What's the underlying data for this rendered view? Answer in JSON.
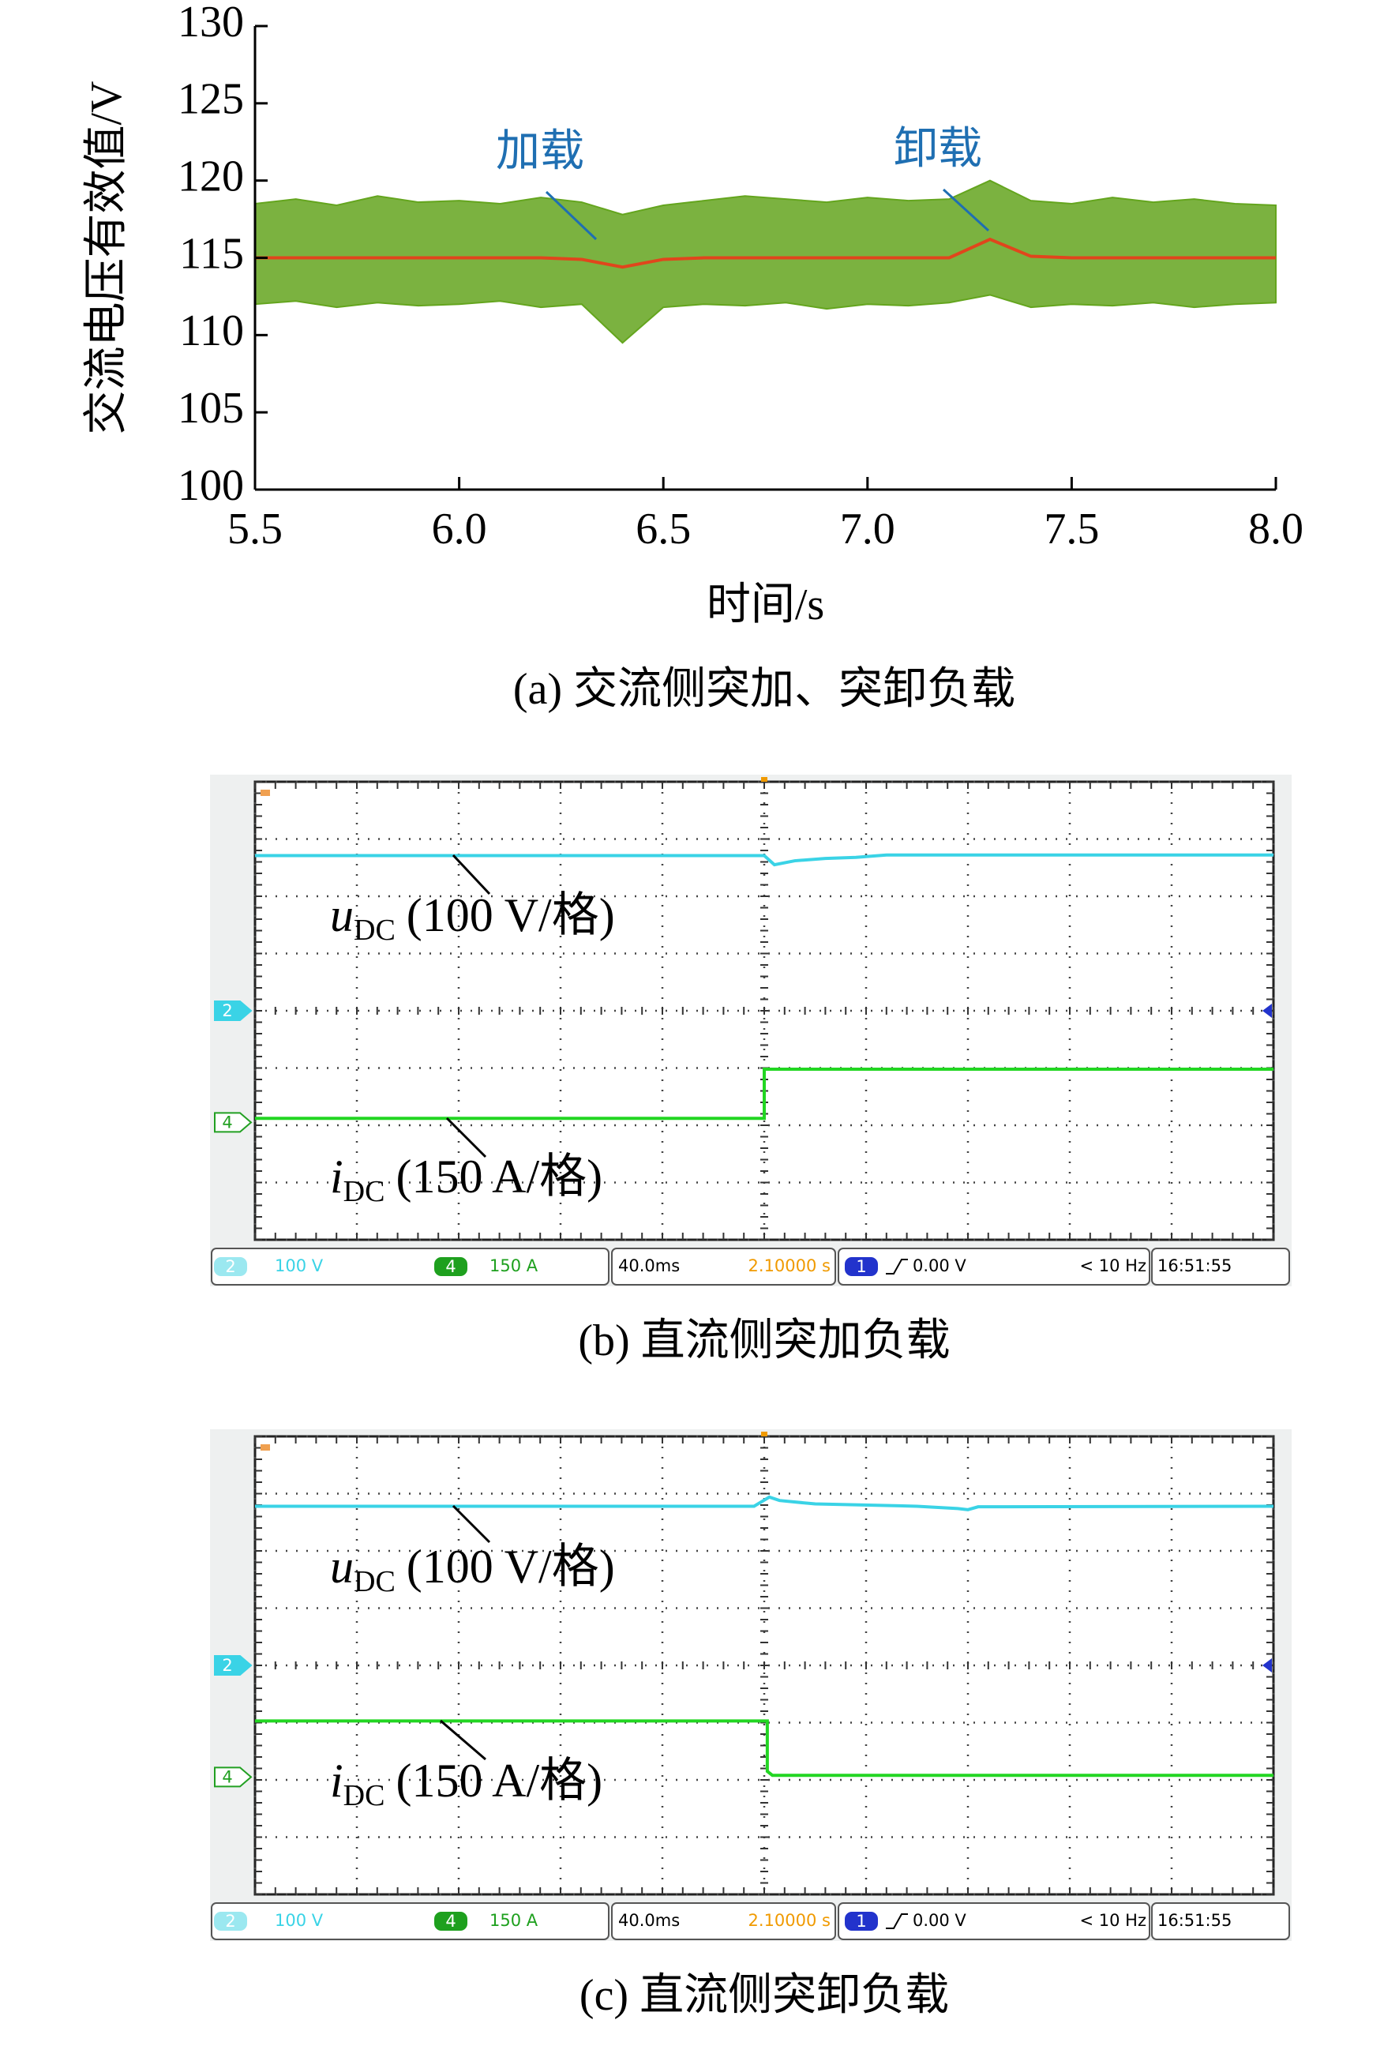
{
  "chart_data": [
    {
      "type": "line",
      "x_label": "时间/s",
      "y_label": "交流电压有效值/V",
      "caption": "(a) 交流侧突加、突卸负载",
      "annotations": [
        "加载",
        "卸载"
      ],
      "annotation_color": "#1f6fb2",
      "xlim": [
        5.5,
        8.0
      ],
      "ylim": [
        100,
        130
      ],
      "xticks": [
        5.5,
        {
          "value": 6,
          "label": "6.0"
        },
        6.5,
        {
          "value": 7,
          "label": "7.0"
        },
        7.5,
        {
          "value": 8,
          "label": "8.0"
        }
      ],
      "yticks": [
        100,
        105,
        110,
        115,
        120,
        125,
        130
      ],
      "x": [
        5.5,
        5.6,
        5.7,
        5.8,
        5.9,
        6.0,
        6.1,
        6.2,
        6.3,
        6.4,
        6.5,
        6.6,
        6.7,
        6.8,
        6.9,
        7.0,
        7.1,
        7.2,
        7.3,
        7.4,
        7.5,
        7.6,
        7.7,
        7.8,
        7.9,
        8.0
      ],
      "band": {
        "color": "#64a51e",
        "upper": [
          118.5,
          118.8,
          118.4,
          119,
          118.6,
          118.7,
          118.5,
          118.9,
          118.6,
          117.8,
          118.4,
          118.7,
          119,
          118.8,
          118.6,
          118.9,
          118.7,
          118.8,
          120,
          118.7,
          118.5,
          118.9,
          118.6,
          118.8,
          118.5,
          118.4
        ],
        "lower": [
          112,
          112.2,
          111.8,
          112.1,
          111.9,
          112,
          112.2,
          111.8,
          112,
          109.5,
          111.8,
          112,
          111.9,
          112.1,
          111.7,
          112,
          111.9,
          112.1,
          112.6,
          111.8,
          112,
          111.9,
          112.1,
          111.8,
          112,
          112.1
        ]
      },
      "series": [
        {
          "color": "#e0461c",
          "values": [
            115,
            115,
            115,
            115,
            115,
            115,
            115,
            115,
            114.9,
            114.4,
            114.9,
            115,
            115,
            115,
            115,
            115,
            115,
            115,
            116.2,
            115.1,
            115,
            115,
            115,
            115,
            115,
            115
          ]
        }
      ]
    },
    {
      "type": "oscilloscope",
      "caption": "(b) 直流侧突加负载",
      "xlim": [
        0,
        10
      ],
      "ylim": [
        -4,
        4
      ],
      "xticks": [
        0,
        1,
        2,
        3,
        4,
        5,
        6,
        7,
        8,
        9,
        10
      ],
      "yticks": [
        -4,
        -3,
        -2,
        -1,
        0,
        1,
        2,
        3,
        4
      ],
      "series": [
        {
          "color": "#3ad3e6",
          "x": [
            0,
            4.9,
            5.0,
            5.1,
            5.3,
            5.6,
            5.9,
            6.2,
            10
          ],
          "values": [
            2.71,
            2.71,
            2.71,
            2.55,
            2.62,
            2.66,
            2.68,
            2.72,
            2.72
          ]
        },
        {
          "color": "#22d622",
          "x": [
            0,
            5.0,
            5.0,
            5.04,
            10
          ],
          "values": [
            -1.88,
            -1.88,
            -1.02,
            -1.02,
            -1.02
          ]
        }
      ],
      "markers": [
        {
          "label": "2",
          "value": 0,
          "color": "#3ad3e6"
        },
        {
          "label": "4",
          "value": -1.95,
          "color": "#22a022"
        }
      ],
      "annotations": [
        {
          "symbol": "u",
          "subscript": "DC",
          "text": "(100 V/格)"
        },
        {
          "symbol": "i",
          "subscript": "DC",
          "text": "(150 A/格)"
        }
      ],
      "status": {
        "ch2": "2",
        "ch2_scale": "100 V",
        "ch4": "4",
        "ch4_scale": "150 A",
        "timebase": "40.0ms",
        "trigger_time": "2.10000 s",
        "trigger_source": "1",
        "trigger_level": "0.00 V",
        "frequency": "< 10 Hz",
        "clock": "16:51:55"
      }
    },
    {
      "type": "oscilloscope",
      "caption": "(c) 直流侧突卸负载",
      "xlim": [
        0,
        10
      ],
      "ylim": [
        -4,
        4
      ],
      "xticks": [
        0,
        1,
        2,
        3,
        4,
        5,
        6,
        7,
        8,
        9,
        10
      ],
      "yticks": [
        -4,
        -3,
        -2,
        -1,
        0,
        1,
        2,
        3,
        4
      ],
      "series": [
        {
          "color": "#3ad3e6",
          "x": [
            0,
            4.9,
            5.05,
            5.15,
            5.5,
            6.5,
            6.9,
            7.0,
            7.1,
            10
          ],
          "values": [
            2.78,
            2.78,
            2.94,
            2.88,
            2.82,
            2.78,
            2.74,
            2.72,
            2.77,
            2.78
          ]
        },
        {
          "color": "#22d622",
          "x": [
            0,
            5.03,
            5.03,
            5.08,
            10
          ],
          "values": [
            -0.97,
            -0.97,
            -1.85,
            -1.92,
            -1.92
          ]
        }
      ],
      "markers": [
        {
          "label": "2",
          "value": 0,
          "color": "#3ad3e6"
        },
        {
          "label": "4",
          "value": -1.95,
          "color": "#22a022"
        }
      ],
      "annotations": [
        {
          "symbol": "u",
          "subscript": "DC",
          "text": "(100 V/格)"
        },
        {
          "symbol": "i",
          "subscript": "DC",
          "text": "(150 A/格)"
        }
      ],
      "status": {
        "ch2": "2",
        "ch2_scale": "100 V",
        "ch4": "4",
        "ch4_scale": "150 A",
        "timebase": "40.0ms",
        "trigger_time": "2.10000 s",
        "trigger_source": "1",
        "trigger_level": "0.00 V",
        "frequency": "< 10 Hz",
        "clock": "16:51:55"
      }
    }
  ]
}
